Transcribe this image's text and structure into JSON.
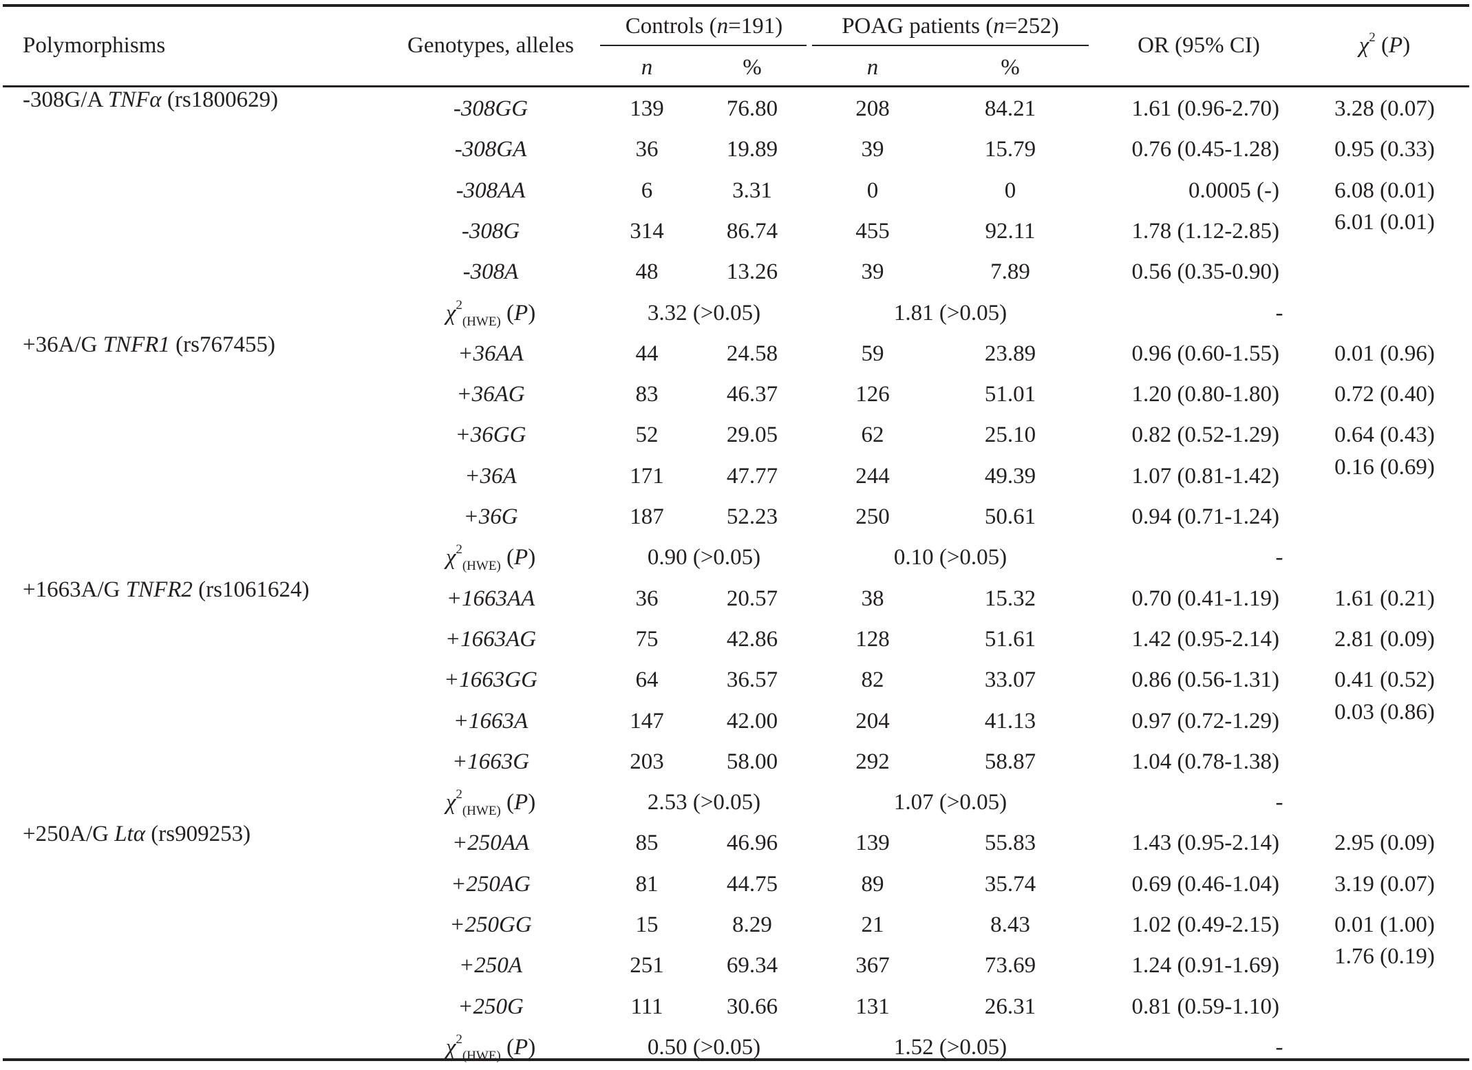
{
  "table": {
    "header": {
      "polymorphisms": "Polymorphisms",
      "genotypes": "Genotypes, alleles",
      "controls": {
        "label": "Controls (",
        "n": "n",
        "value": "=191)"
      },
      "patients": {
        "label": "POAG patients (",
        "n": "n",
        "value": "=252)"
      },
      "sub_n": "n",
      "sub_pct": "%",
      "or": "OR (95% CI)",
      "chi": {
        "symbol": "χ",
        "sup": "2",
        "rest": " (",
        "p": "P",
        "close": ")"
      }
    },
    "hwe_label": {
      "symbol": "χ",
      "sup": "2",
      "sub": "(HWE)",
      "open": " (",
      "p": "P",
      "close": ")"
    },
    "groups": [
      {
        "name_pre": "-308G/A ",
        "gene": "TNFα",
        "rs": " (rs1800629)",
        "rows": [
          {
            "g": "-308GG",
            "cn": "139",
            "cp": "76.80",
            "pn": "208",
            "pp": "84.21",
            "or": "1.61 (0.96-2.70)",
            "chi": "3.28 (0.07)"
          },
          {
            "g": "-308GA",
            "cn": "36",
            "cp": "19.89",
            "pn": "39",
            "pp": "15.79",
            "or": "0.76 (0.45-1.28)",
            "chi": "0.95 (0.33)"
          },
          {
            "g": "-308AA",
            "cn": "6",
            "cp": "3.31",
            "pn": "0",
            "pp": "0",
            "or": "0.0005 (-)",
            "chi": "6.08 (0.01)"
          },
          {
            "g": "-308G",
            "cn": "314",
            "cp": "86.74",
            "pn": "455",
            "pp": "92.11",
            "or": "1.78 (1.12-2.85)",
            "chi": "6.01 (0.01)"
          },
          {
            "g": "-308A",
            "cn": "48",
            "cp": "13.26",
            "pn": "39",
            "pp": "7.89",
            "or": "0.56 (0.35-0.90)",
            "chi": ""
          }
        ],
        "hwe": {
          "controls": "3.32 (>0.05)",
          "patients": "1.81 (>0.05)",
          "or": "-"
        }
      },
      {
        "name_pre": "+36A/G ",
        "gene": "TNFR1",
        "rs": " (rs767455)",
        "rows": [
          {
            "g": "+36AA",
            "cn": "44",
            "cp": "24.58",
            "pn": "59",
            "pp": "23.89",
            "or": "0.96 (0.60-1.55)",
            "chi": "0.01 (0.96)"
          },
          {
            "g": "+36AG",
            "cn": "83",
            "cp": "46.37",
            "pn": "126",
            "pp": "51.01",
            "or": "1.20 (0.80-1.80)",
            "chi": "0.72 (0.40)"
          },
          {
            "g": "+36GG",
            "cn": "52",
            "cp": "29.05",
            "pn": "62",
            "pp": "25.10",
            "or": "0.82 (0.52-1.29)",
            "chi": "0.64 (0.43)"
          },
          {
            "g": "+36A",
            "cn": "171",
            "cp": "47.77",
            "pn": "244",
            "pp": "49.39",
            "or": "1.07 (0.81-1.42)",
            "chi": "0.16 (0.69)"
          },
          {
            "g": "+36G",
            "cn": "187",
            "cp": "52.23",
            "pn": "250",
            "pp": "50.61",
            "or": "0.94 (0.71-1.24)",
            "chi": ""
          }
        ],
        "hwe": {
          "controls": "0.90 (>0.05)",
          "patients": "0.10 (>0.05)",
          "or": "-"
        }
      },
      {
        "name_pre": "+1663A/G ",
        "gene": "TNFR2",
        "rs": " (rs1061624)",
        "rows": [
          {
            "g": "+1663AA",
            "cn": "36",
            "cp": "20.57",
            "pn": "38",
            "pp": "15.32",
            "or": "0.70 (0.41-1.19)",
            "chi": "1.61 (0.21)"
          },
          {
            "g": "+1663AG",
            "cn": "75",
            "cp": "42.86",
            "pn": "128",
            "pp": "51.61",
            "or": "1.42 (0.95-2.14)",
            "chi": "2.81 (0.09)"
          },
          {
            "g": "+1663GG",
            "cn": "64",
            "cp": "36.57",
            "pn": "82",
            "pp": "33.07",
            "or": "0.86 (0.56-1.31)",
            "chi": "0.41 (0.52)"
          },
          {
            "g": "+1663A",
            "cn": "147",
            "cp": "42.00",
            "pn": "204",
            "pp": "41.13",
            "or": "0.97 (0.72-1.29)",
            "chi": "0.03 (0.86)"
          },
          {
            "g": "+1663G",
            "cn": "203",
            "cp": "58.00",
            "pn": "292",
            "pp": "58.87",
            "or": "1.04 (0.78-1.38)",
            "chi": ""
          }
        ],
        "hwe": {
          "controls": "2.53 (>0.05)",
          "patients": "1.07 (>0.05)",
          "or": "-"
        }
      },
      {
        "name_pre": "+250A/G ",
        "gene": "Ltα",
        "rs": " (rs909253)",
        "rows": [
          {
            "g": "+250AA",
            "cn": "85",
            "cp": "46.96",
            "pn": "139",
            "pp": "55.83",
            "or": "1.43 (0.95-2.14)",
            "chi": "2.95 (0.09)"
          },
          {
            "g": "+250AG",
            "cn": "81",
            "cp": "44.75",
            "pn": "89",
            "pp": "35.74",
            "or": "0.69 (0.46-1.04)",
            "chi": "3.19 (0.07)"
          },
          {
            "g": "+250GG",
            "cn": "15",
            "cp": "8.29",
            "pn": "21",
            "pp": "8.43",
            "or": "1.02 (0.49-2.15)",
            "chi": "0.01 (1.00)"
          },
          {
            "g": "+250A",
            "cn": "251",
            "cp": "69.34",
            "pn": "367",
            "pp": "73.69",
            "or": "1.24 (0.91-1.69)",
            "chi": "1.76 (0.19)"
          },
          {
            "g": "+250G",
            "cn": "111",
            "cp": "30.66",
            "pn": "131",
            "pp": "26.31",
            "or": "0.81 (0.59-1.10)",
            "chi": ""
          }
        ],
        "hwe": {
          "controls": "0.50 (>0.05)",
          "patients": "1.52 (>0.05)",
          "or": "-"
        }
      }
    ]
  }
}
